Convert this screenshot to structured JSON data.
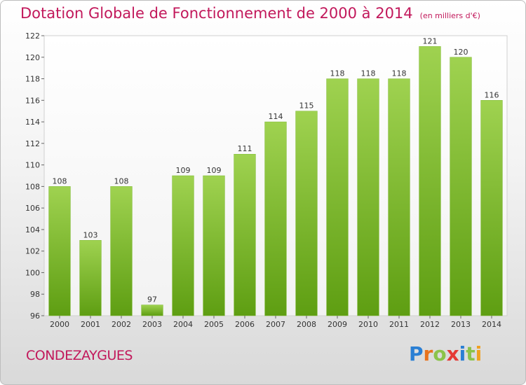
{
  "title": "Dotation Globale de Fonctionnement de 2000 à 2014",
  "subtitle": "(en milliers d'€)",
  "commune": "CONDEZAYGUES",
  "logo": {
    "letters": [
      "P",
      "r",
      "o",
      "x",
      "i",
      "t",
      "i"
    ],
    "colors": [
      "#2a7fd4",
      "#e8731d",
      "#8bc34a",
      "#e53935",
      "#2a7fd4",
      "#8bc34a",
      "#f0a020"
    ]
  },
  "chart_data": {
    "type": "bar",
    "categories": [
      "2000",
      "2001",
      "2002",
      "2003",
      "2004",
      "2005",
      "2006",
      "2007",
      "2008",
      "2009",
      "2010",
      "2011",
      "2012",
      "2013",
      "2014"
    ],
    "values": [
      108,
      103,
      108,
      97,
      109,
      109,
      111,
      114,
      115,
      118,
      118,
      118,
      121,
      120,
      116
    ],
    "data_labels": [
      "108",
      "103",
      "108",
      "97",
      "109",
      "109",
      "111",
      "114",
      "115",
      "118",
      "118",
      "118",
      "121",
      "120",
      "116"
    ],
    "ylim": [
      96,
      122
    ],
    "yticks": [
      96,
      98,
      100,
      102,
      104,
      106,
      108,
      110,
      112,
      114,
      116,
      118,
      120,
      122
    ],
    "ytick_labels": [
      "96",
      "98",
      "100",
      "102",
      "104",
      "106",
      "108",
      "110",
      "112",
      "114",
      "116",
      "118",
      "120",
      "122"
    ],
    "grid": false,
    "bar_color": "#8cc63f",
    "xlabel": "",
    "ylabel": ""
  }
}
